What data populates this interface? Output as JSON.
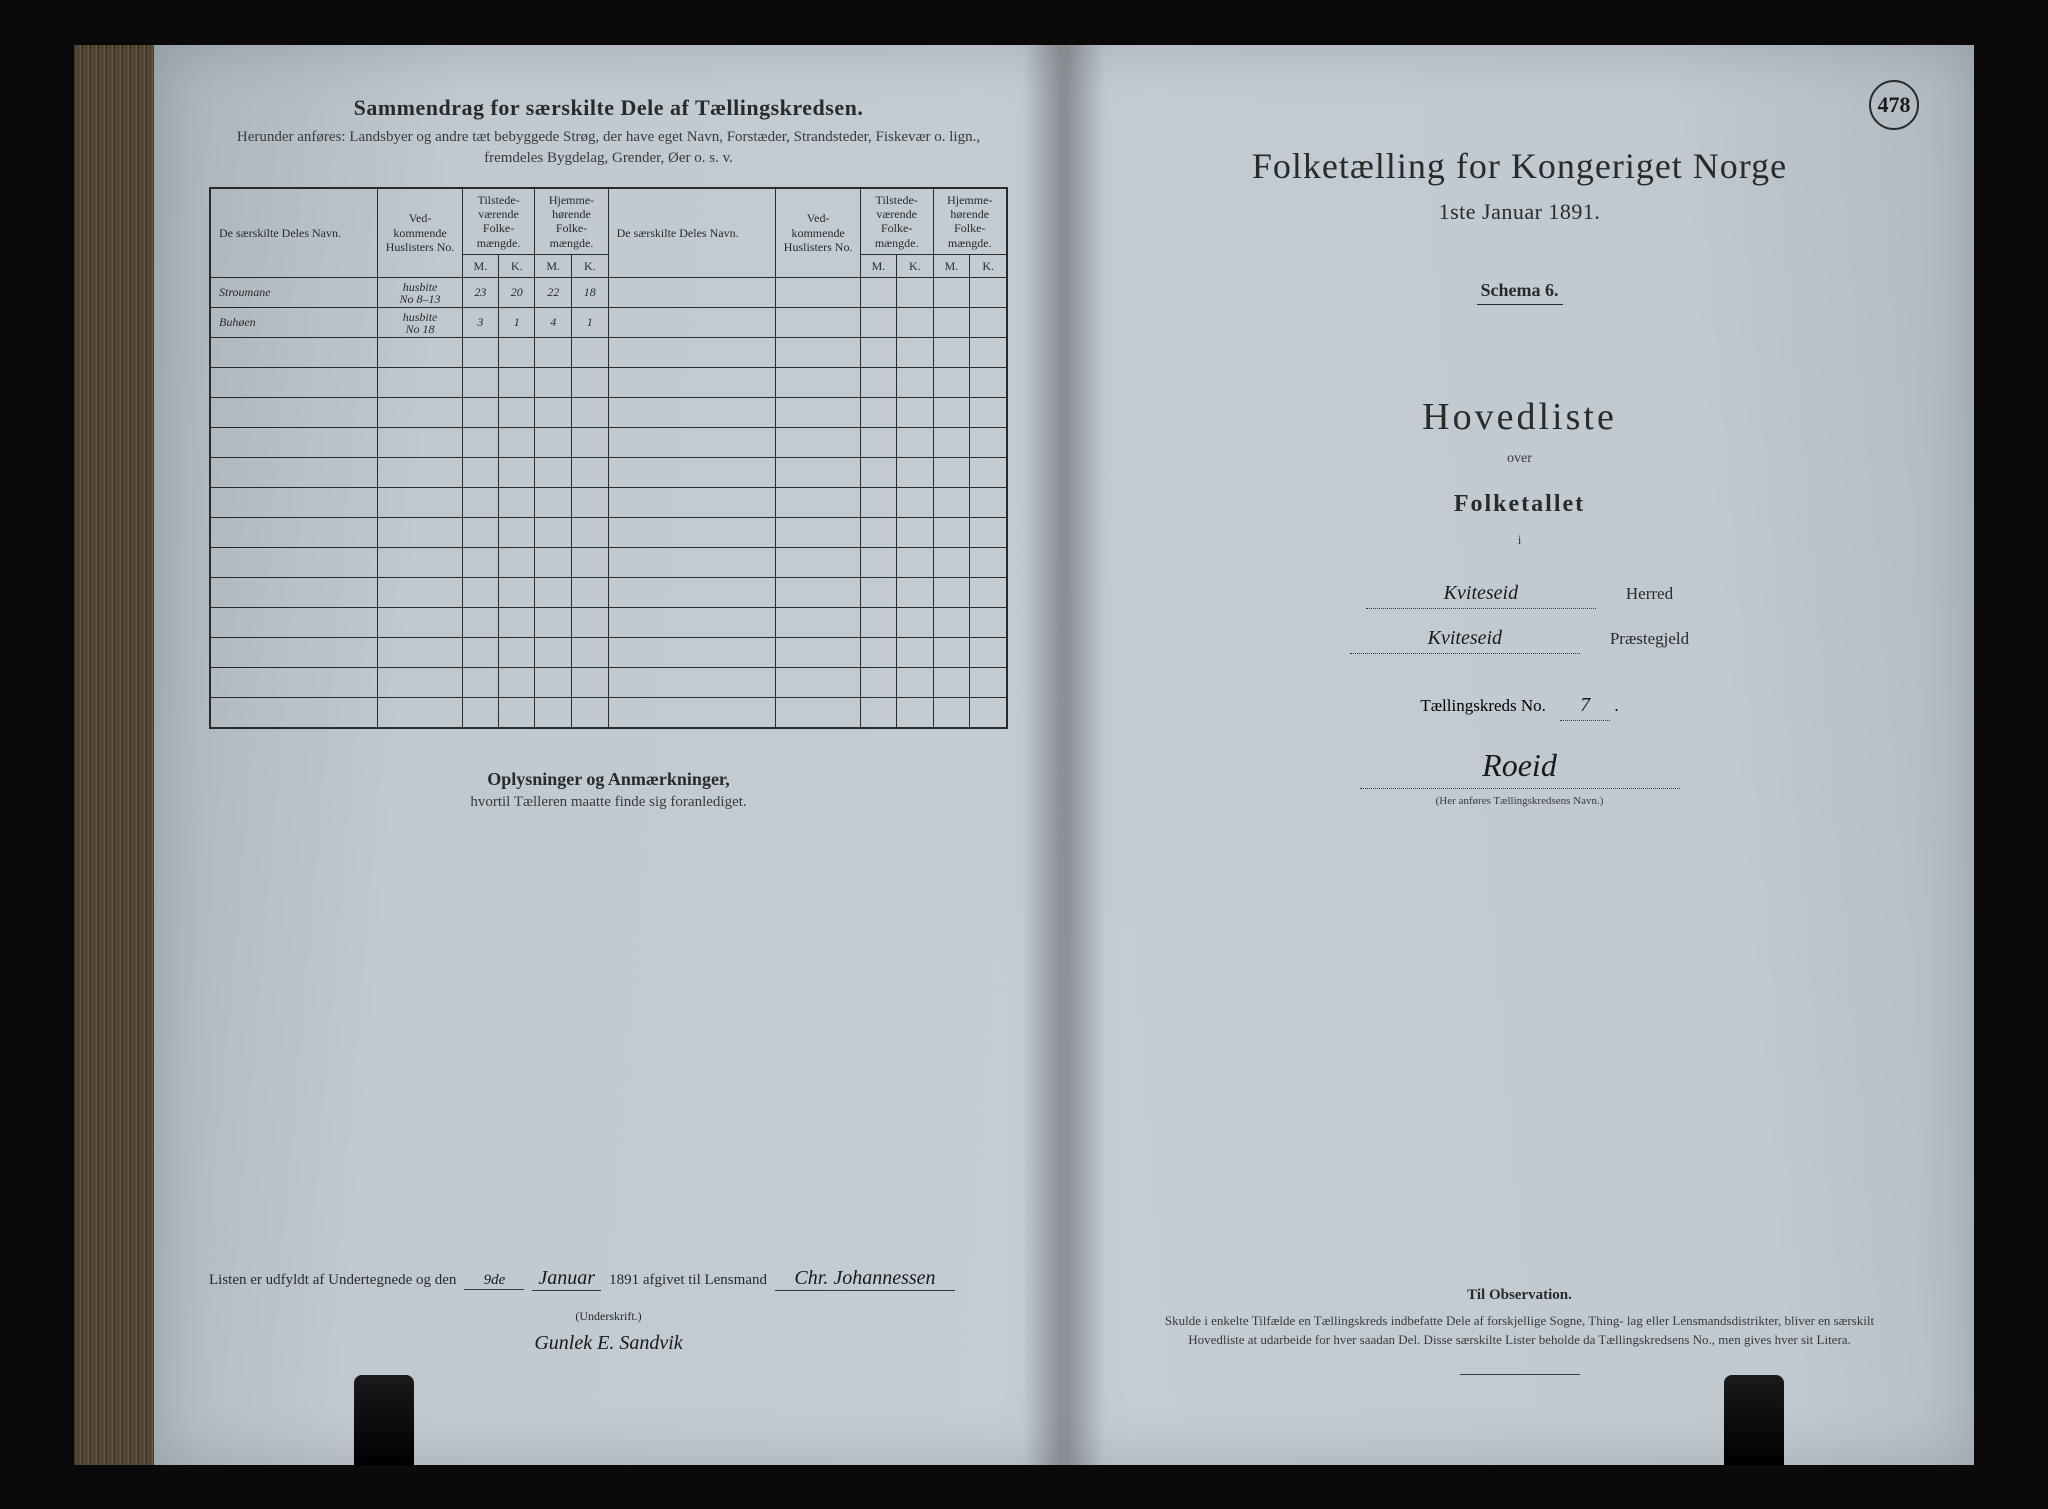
{
  "page_number": "478",
  "colors": {
    "ink": "#2a2a2a",
    "paper": "#c0c8d0",
    "background": "#0a0a0a",
    "rule": "#3a3a3a"
  },
  "left_page": {
    "title": "Sammendrag for særskilte Dele af Tællingskredsen.",
    "subtitle": "Herunder anføres: Landsbyer og andre tæt bebyggede Strøg, der have eget Navn, Forstæder, Strandsteder, Fiskevær o. lign., fremdeles Bygdelag, Grender, Øer o. s. v.",
    "table": {
      "headers": {
        "navn": "De særskilte Deles Navn.",
        "huslister": "Ved-\nkommende\nHuslisters\nNo.",
        "tilstede": "Tilstede-\nværende\nFolke-\nmængde.",
        "hjemme": "Hjemme-\nhørende\nFolke-\nmængde.",
        "m": "M.",
        "k": "K."
      },
      "rows": [
        {
          "navn": "Stroumane",
          "huslister": "husbite\nNo 8–13",
          "tm": "23",
          "tk": "20",
          "hm": "22",
          "hk": "18"
        },
        {
          "navn": "Buhøen",
          "huslister": "husbite\nNo 18",
          "tm": "3",
          "tk": "1",
          "hm": "4",
          "hk": "1"
        }
      ],
      "empty_rows": 13
    },
    "notes_title": "Oplysninger og Anmærkninger,",
    "notes_sub": "hvortil Tælleren maatte finde sig foranlediget.",
    "signature": {
      "prefix": "Listen er udfyldt af Undertegnede og den",
      "day": "9de",
      "month": "Januar",
      "year": "1891 afgivet til Lensmand",
      "lensmand": "Chr. Johannessen",
      "underskrift_label": "(Underskrift.)",
      "underskrift": "Gunlek E. Sandvik"
    }
  },
  "right_page": {
    "main_title": "Folketælling for Kongeriget Norge",
    "main_date": "1ste Januar 1891.",
    "schema": "Schema 6.",
    "hovedliste": "Hovedliste",
    "over": "over",
    "folketallet": "Folketallet",
    "i": "i",
    "herred": {
      "value": "Kviteseid",
      "label": "Herred"
    },
    "praestegjeld": {
      "value": "Kviteseid",
      "label": "Præstegjeld"
    },
    "kreds_label": "Tællingskreds No.",
    "kreds_no": "7",
    "kreds_punct": ".",
    "kreds_name": "Roeid",
    "kreds_note": "(Her anføres Tællingskredsens Navn.)",
    "observation": {
      "title": "Til Observation.",
      "text": "Skulde i enkelte Tilfælde en Tællingskreds indbefatte Dele af forskjellige Sogne, Thing- lag eller Lensmandsdistrikter, bliver en særskilt Hovedliste at udarbeide for hver saadan Del. Disse særskilte Lister beholde da Tællingskredsens No., men gives hver sit Litera."
    }
  }
}
